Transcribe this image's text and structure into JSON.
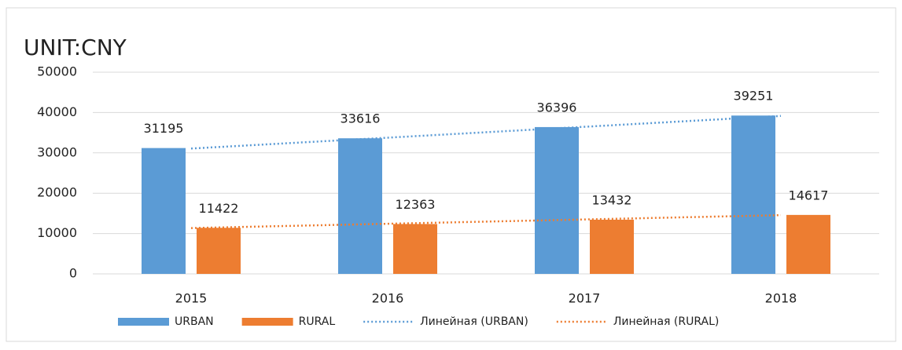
{
  "chart_data": {
    "type": "bar",
    "title": "UNIT:CNY",
    "categories": [
      "2015",
      "2016",
      "2017",
      "2018"
    ],
    "series": [
      {
        "name": "URBAN",
        "color": "#5b9bd5",
        "values": [
          31195,
          33616,
          36396,
          39251
        ],
        "trendline": {
          "name": "Линейная (URBAN)",
          "style": "dotted"
        }
      },
      {
        "name": "RURAL",
        "color": "#ed7d31",
        "values": [
          11422,
          12363,
          13432,
          14617
        ],
        "trendline": {
          "name": "Линейная (RURAL)",
          "style": "dotted"
        }
      }
    ],
    "ylim": [
      0,
      50000
    ],
    "yticks": [
      0,
      10000,
      20000,
      30000,
      40000,
      50000
    ],
    "grid": true,
    "legend": "bottom"
  }
}
